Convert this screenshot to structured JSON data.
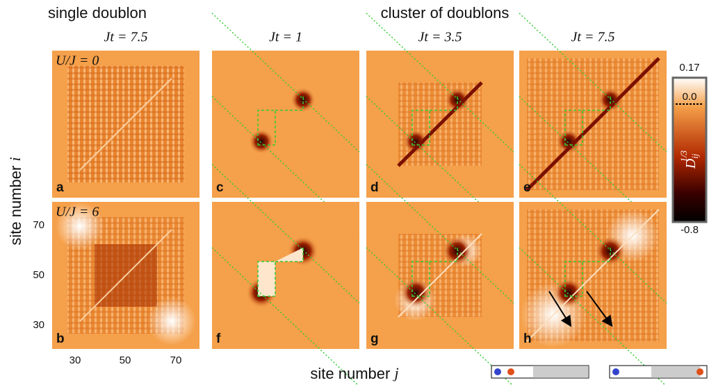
{
  "headers": {
    "left": "single doublon",
    "right": "cluster of doublons"
  },
  "columns": [
    "Jt = 7.5",
    "Jt = 1",
    "Jt = 3.5",
    "Jt = 7.5"
  ],
  "rows": [
    "U/J = 0",
    "U/J = 6"
  ],
  "panels": [
    "a",
    "c",
    "d",
    "e",
    "b",
    "f",
    "g",
    "h"
  ],
  "colorbar": {
    "max": "0.17",
    "mid": "0.0",
    "min": "-0.8",
    "label": {
      "symbol": "D",
      "sub": "ij",
      "sup": "1/3"
    }
  },
  "y_axis": {
    "text": "site number",
    "var": "i",
    "ticks": [
      "70",
      "50",
      "30"
    ]
  },
  "x_axis": {
    "text": "site number",
    "var": "j",
    "ticks": [
      "30",
      "50",
      "70"
    ]
  }
}
